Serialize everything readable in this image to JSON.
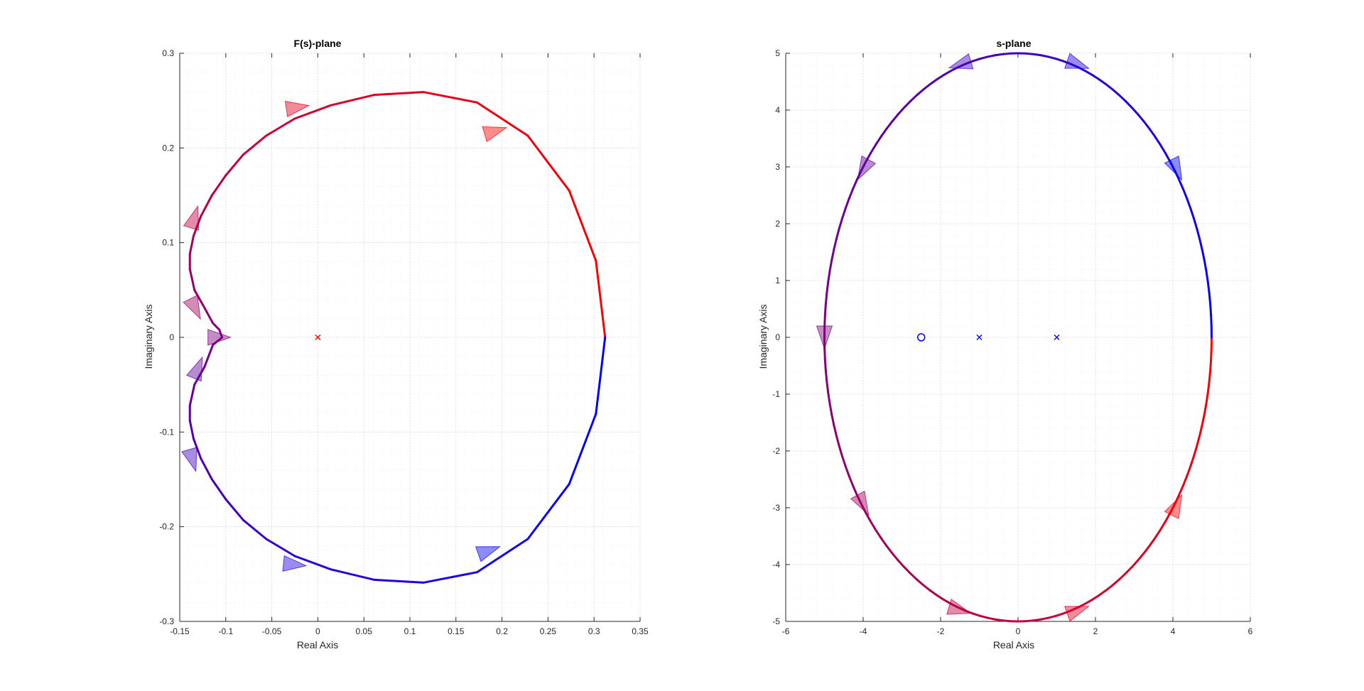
{
  "figure": {
    "background": "#ffffff",
    "axes_background": "#ffffff",
    "grid_color": "#dcdcdc",
    "minor_grid_color": "#ececec",
    "axis_color": "#262626"
  },
  "chart_data": [
    {
      "type": "line",
      "title": "F(s)-plane",
      "xlabel": "Real Axis",
      "ylabel": "Imaginary Axis",
      "xlim": [
        -0.15,
        0.35
      ],
      "ylim": [
        -0.3,
        0.3
      ],
      "xticks": [
        -0.15,
        -0.1,
        -0.05,
        0,
        0.05,
        0.1,
        0.15,
        0.2,
        0.25,
        0.3,
        0.35
      ],
      "xtick_labels": [
        "-0.15",
        "-0.1",
        "-0.05",
        "0",
        "0.05",
        "0.1",
        "0.15",
        "0.2",
        "0.25",
        "0.3",
        "0.35"
      ],
      "yticks": [
        -0.3,
        -0.2,
        -0.1,
        0,
        0.1,
        0.2,
        0.3
      ],
      "ytick_labels": [
        "-0.3",
        "-0.2",
        "-0.1",
        "0",
        "0.1",
        "0.2",
        "0.3"
      ],
      "grid": true,
      "minor_grid": true,
      "color_start": "#ff0000",
      "color_end": "#0000ff",
      "series": [
        {
          "values_x": [
            0.312,
            0.302,
            0.273,
            0.228,
            0.173,
            0.115,
            0.061,
            0.014,
            -0.025,
            -0.056,
            -0.081,
            -0.1,
            -0.115,
            -0.127,
            -0.135,
            -0.139,
            -0.139,
            -0.134,
            -0.123,
            -0.114,
            -0.107,
            -0.104,
            -0.114,
            -0.123,
            -0.134,
            -0.139,
            -0.139,
            -0.135,
            -0.127,
            -0.115,
            -0.1,
            -0.081,
            -0.056,
            -0.025,
            0.014,
            0.061,
            0.115,
            0.173,
            0.228,
            0.273,
            0.302,
            0.312
          ],
          "values_y": [
            0.0,
            0.081,
            0.155,
            0.213,
            0.248,
            0.259,
            0.256,
            0.245,
            0.231,
            0.213,
            0.193,
            0.171,
            0.15,
            0.128,
            0.107,
            0.088,
            0.072,
            0.05,
            0.031,
            0.015,
            0.008,
            0.0,
            -0.008,
            -0.031,
            -0.05,
            -0.072,
            -0.088,
            -0.107,
            -0.128,
            -0.15,
            -0.171,
            -0.193,
            -0.213,
            -0.231,
            -0.245,
            -0.256,
            -0.259,
            -0.248,
            -0.213,
            -0.155,
            -0.081,
            0.0
          ]
        }
      ],
      "arrows": [
        {
          "x": 0.193,
          "y": 0.218,
          "dx": 1,
          "dy": 0.3
        },
        {
          "x": -0.022,
          "y": 0.243,
          "dx": 1,
          "dy": 0.15
        },
        {
          "x": -0.134,
          "y": 0.127,
          "dx": 0.3,
          "dy": 1
        },
        {
          "x": -0.133,
          "y": 0.03,
          "dx": 0.4,
          "dy": -0.8
        },
        {
          "x": -0.107,
          "y": 0.0,
          "dx": 1,
          "dy": 0.0
        },
        {
          "x": -0.13,
          "y": -0.032,
          "dx": 0.4,
          "dy": 1
        },
        {
          "x": -0.136,
          "y": -0.13,
          "dx": 0.3,
          "dy": -1
        },
        {
          "x": -0.025,
          "y": -0.24,
          "dx": 1,
          "dy": -0.1
        },
        {
          "x": 0.186,
          "y": -0.225,
          "dx": 1,
          "dy": 0.35
        }
      ],
      "markers": [
        {
          "x": 0.0,
          "y": 0.0,
          "symbol": "x",
          "color": "#ff0000"
        }
      ]
    },
    {
      "type": "line",
      "title": "s-plane",
      "xlabel": "Real Axis",
      "ylabel": "Imaginary Axis",
      "xlim": [
        -6,
        6
      ],
      "ylim": [
        -5,
        5
      ],
      "xticks": [
        -6,
        -4,
        -2,
        0,
        2,
        4,
        6
      ],
      "xtick_labels": [
        "-6",
        "-4",
        "-2",
        "0",
        "2",
        "4",
        "6"
      ],
      "yticks": [
        -5,
        -4,
        -3,
        -2,
        -1,
        0,
        1,
        2,
        3,
        4,
        5
      ],
      "ytick_labels": [
        "-5",
        "-4",
        "-3",
        "-2",
        "-1",
        "0",
        "1",
        "2",
        "3",
        "4",
        "5"
      ],
      "grid": true,
      "minor_grid": true,
      "color_start": "#ff0000",
      "color_end": "#0000ff",
      "series": [
        {
          "ellipse": {
            "cx": 0,
            "cy": 0,
            "rx": 5,
            "ry": 5,
            "direction": "clockwise",
            "start_angle_deg": 0
          }
        }
      ],
      "arrows": [
        {
          "x": 4.1,
          "y": -2.95,
          "dx": 0.5,
          "dy": 1
        },
        {
          "x": 1.55,
          "y": -4.8,
          "dx": 1,
          "dy": 0.35
        },
        {
          "x": -1.5,
          "y": -4.8,
          "dx": 1,
          "dy": -0.3
        },
        {
          "x": -4.0,
          "y": -2.95,
          "dx": 0.55,
          "dy": -1
        },
        {
          "x": -5.0,
          "y": 0.0,
          "dx": 0.0,
          "dy": -1
        },
        {
          "x": -4.0,
          "y": 2.95,
          "dx": -0.55,
          "dy": -1
        },
        {
          "x": -1.5,
          "y": 4.8,
          "dx": -1,
          "dy": -0.3
        },
        {
          "x": 1.55,
          "y": 4.8,
          "dx": 1,
          "dy": -0.35
        },
        {
          "x": 4.1,
          "y": 2.95,
          "dx": 0.5,
          "dy": -1
        }
      ],
      "markers": [
        {
          "x": -2.5,
          "y": 0.0,
          "symbol": "o",
          "color": "#0000ff"
        },
        {
          "x": -1.0,
          "y": 0.0,
          "symbol": "x",
          "color": "#0000ff"
        },
        {
          "x": 1.0,
          "y": 0.0,
          "symbol": "x",
          "color": "#0000ff"
        }
      ]
    }
  ]
}
